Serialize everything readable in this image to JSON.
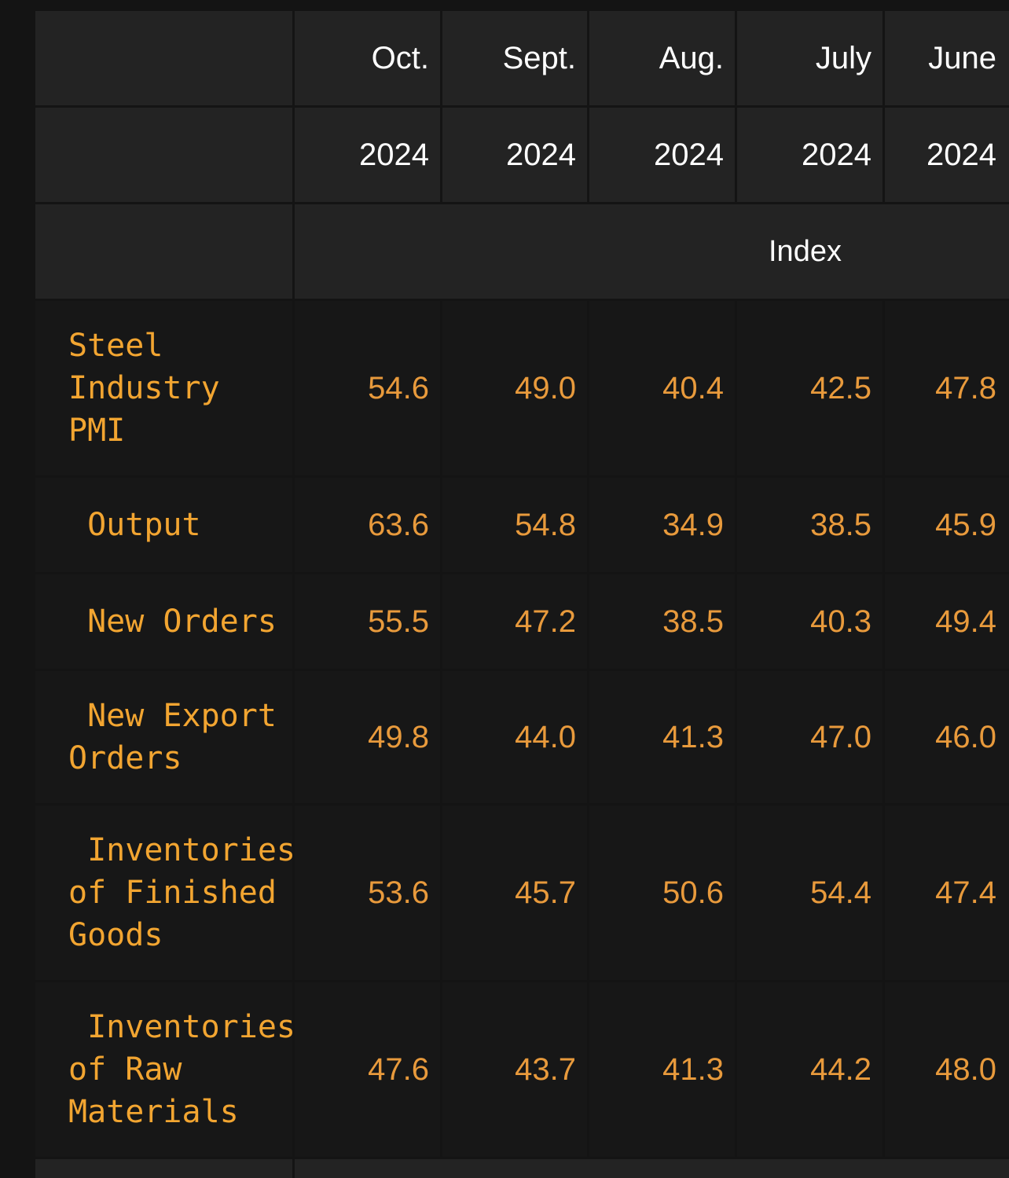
{
  "header": {
    "months": [
      "Oct.",
      "Sept.",
      "Aug.",
      "July",
      "June"
    ],
    "years": [
      "2024",
      "2024",
      "2024",
      "2024",
      "2024"
    ],
    "unit": "Index"
  },
  "rows": [
    {
      "label_lines": [
        "Steel",
        "Industry",
        "PMI"
      ],
      "values": [
        "54.6",
        "49.0",
        "40.4",
        "42.5",
        "47.8"
      ]
    },
    {
      "label_lines": [
        " Output"
      ],
      "values": [
        "63.6",
        "54.8",
        "34.9",
        "38.5",
        "45.9"
      ]
    },
    {
      "label_lines": [
        " New Orders"
      ],
      "values": [
        "55.5",
        "47.2",
        "38.5",
        "40.3",
        "49.4"
      ]
    },
    {
      "label_lines": [
        " New Export",
        "Orders"
      ],
      "values": [
        "49.8",
        "44.0",
        "41.3",
        "47.0",
        "46.0"
      ]
    },
    {
      "label_lines": [
        " Inventories",
        "of Finished",
        "Goods"
      ],
      "values": [
        "53.6",
        "45.7",
        "50.6",
        "54.4",
        "47.4"
      ]
    },
    {
      "label_lines": [
        " Inventories",
        "of Raw",
        "Materials"
      ],
      "values": [
        "47.6",
        "43.7",
        "41.3",
        "44.2",
        "48.0"
      ]
    }
  ],
  "colors": {
    "background": "#141414",
    "header_cell": "#232323",
    "body_cell": "#171717",
    "label_text": "#f2a531",
    "value_text": "#e89a3c",
    "header_text": "#ffffff"
  }
}
